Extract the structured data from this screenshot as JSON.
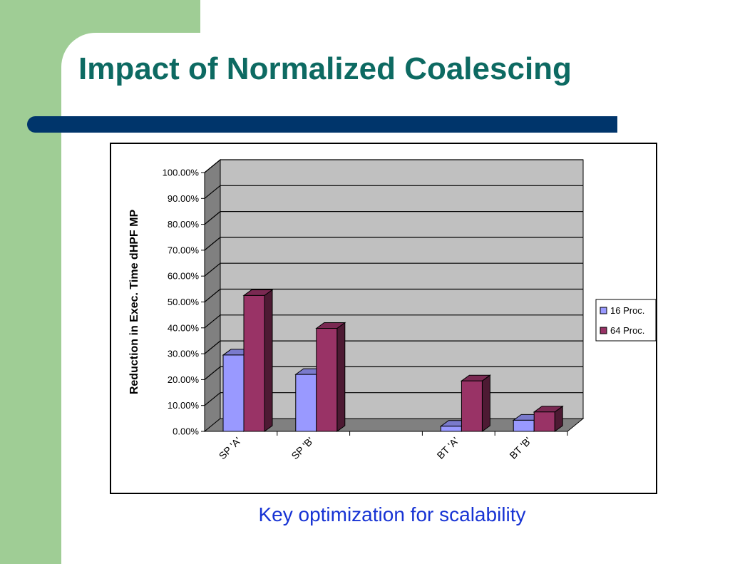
{
  "slide": {
    "title": "Impact of Normalized Coalescing",
    "caption": "Key optimization for scalability",
    "colors": {
      "title": "#0d6a62",
      "caption": "#1733d4",
      "accent_green": "#9fcd95",
      "bar_navy": "#00356b"
    }
  },
  "chart_data": {
    "type": "bar",
    "categories": [
      "SP 'A'",
      "SP 'B'",
      "",
      "BT 'A'",
      "BT 'B'"
    ],
    "series": [
      {
        "name": "16 Proc.",
        "values": [
          29.5,
          22.0,
          null,
          2.0,
          4.3
        ],
        "color": "#9999ff"
      },
      {
        "name": "64 Proc.",
        "values": [
          52.5,
          39.8,
          null,
          19.5,
          7.5
        ],
        "color": "#993366"
      }
    ],
    "title": "",
    "xlabel": "",
    "ylabel": "Reduction in Exec. Time dHPF MP",
    "ylim": [
      0,
      100
    ],
    "yticks": [
      "0.00%",
      "10.00%",
      "20.00%",
      "30.00%",
      "40.00%",
      "50.00%",
      "60.00%",
      "70.00%",
      "80.00%",
      "90.00%",
      "100.00%"
    ],
    "grid": true,
    "legend": "right",
    "wall_color": "#c0c0c0",
    "floor_color": "#808080"
  }
}
